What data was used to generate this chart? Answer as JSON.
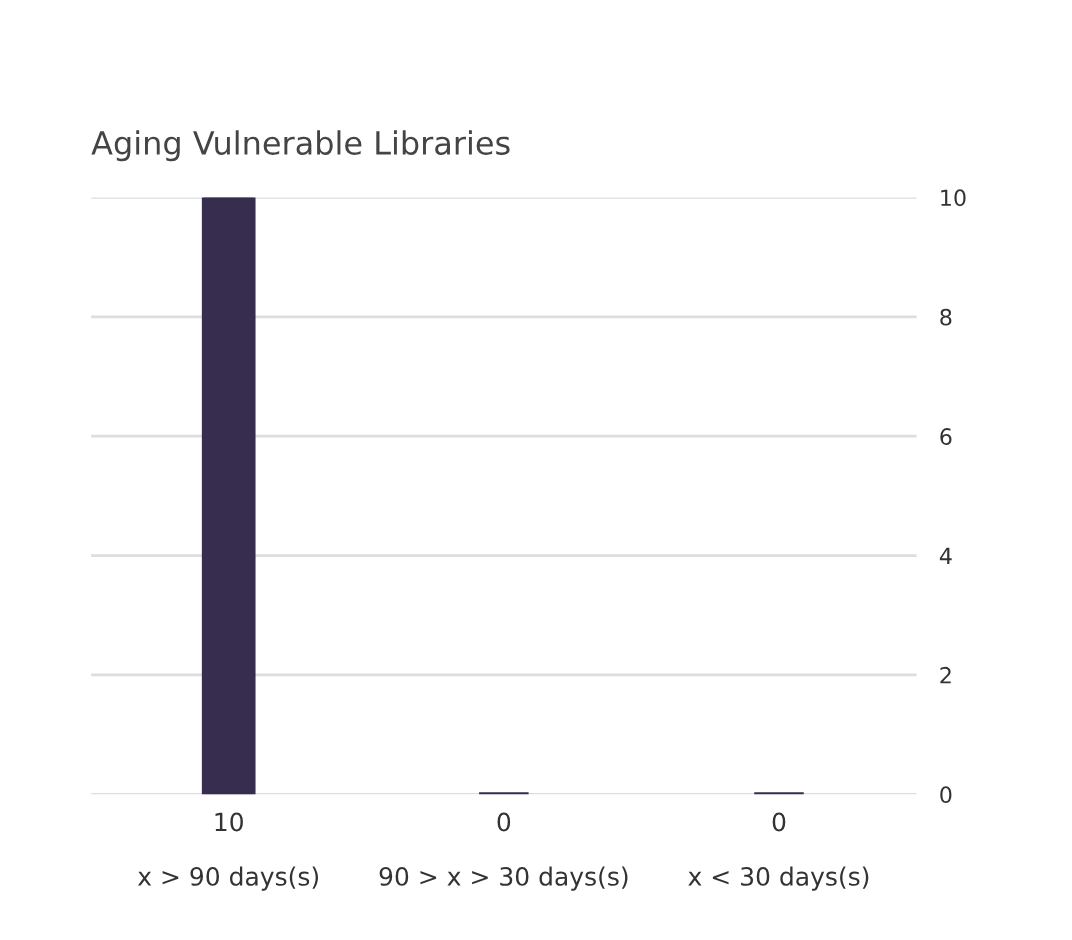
{
  "chart_data": {
    "type": "bar",
    "title": "Aging Vulnerable Libraries",
    "categories": [
      "x > 90 days(s)",
      "90 > x > 30 days(s)",
      "x < 30 days(s)"
    ],
    "values": [
      10,
      0,
      0
    ],
    "color": "#372d4f",
    "ylim": [
      0,
      10
    ],
    "yticks": [
      0,
      2,
      4,
      6,
      8,
      10
    ],
    "grid": "y",
    "data_labels": true
  }
}
